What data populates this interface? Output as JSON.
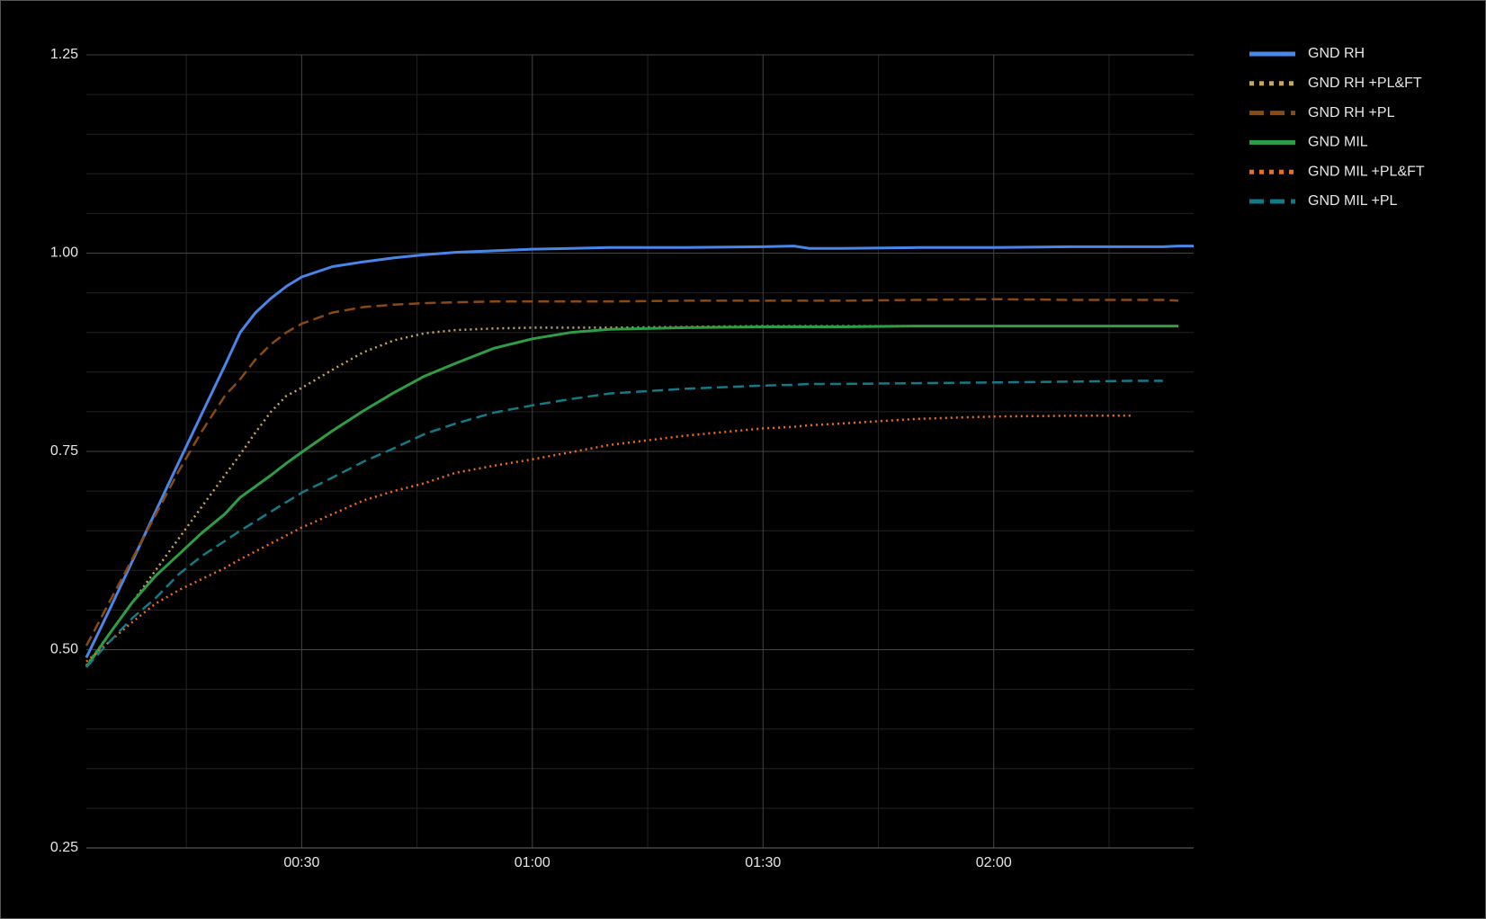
{
  "chart_data": {
    "type": "line",
    "x": [
      2,
      5,
      8,
      11,
      14,
      17,
      20,
      22,
      24,
      26,
      28,
      30,
      34,
      38,
      42,
      46,
      50,
      55,
      60,
      65,
      70,
      80,
      90,
      94,
      96,
      100,
      110,
      120,
      130,
      138,
      142,
      144,
      146
    ],
    "xlim": [
      2,
      146
    ],
    "xticks": [
      {
        "value": 30,
        "label": "00:30"
      },
      {
        "value": 60,
        "label": "01:00"
      },
      {
        "value": 90,
        "label": "01:30"
      },
      {
        "value": 120,
        "label": "02:00"
      }
    ],
    "xminor": [
      15,
      45,
      75,
      105,
      135
    ],
    "ylim": [
      0.25,
      1.25
    ],
    "yticks": [
      {
        "value": 0.25,
        "label": "0.25"
      },
      {
        "value": 0.5,
        "label": "0.50"
      },
      {
        "value": 0.75,
        "label": "0.75"
      },
      {
        "value": 1,
        "label": "1.00"
      },
      {
        "value": 1.25,
        "label": "1.25"
      }
    ],
    "yminor": [
      0.3,
      0.35,
      0.4,
      0.45,
      0.55,
      0.6,
      0.65,
      0.7,
      0.8,
      0.85,
      0.9,
      0.95,
      1.05,
      1.1,
      1.15,
      1.2
    ],
    "grid": true,
    "legend": "right",
    "series": [
      {
        "name": "GND RH",
        "color": "#4a86e8",
        "dash": "solid",
        "values": [
          0.49,
          0.55,
          0.612,
          0.674,
          0.736,
          0.797,
          0.858,
          0.9,
          0.925,
          0.943,
          0.958,
          0.97,
          0.983,
          0.989,
          0.994,
          0.998,
          1.001,
          1.003,
          1.005,
          1.006,
          1.007,
          1.007,
          1.008,
          1.009,
          1.006,
          1.006,
          1.007,
          1.007,
          1.008,
          1.008,
          1.008,
          1.009,
          1.009
        ]
      },
      {
        "name": "GND RH +PL&FT",
        "color": "#c9a65a",
        "dash": "dotted",
        "values": [
          0.48,
          0.52,
          0.56,
          0.6,
          0.64,
          0.68,
          0.72,
          0.746,
          0.774,
          0.8,
          0.82,
          0.83,
          0.853,
          0.875,
          0.89,
          0.899,
          0.903,
          0.905,
          0.906,
          0.906,
          0.906,
          0.907,
          0.908,
          0.908,
          0.908,
          0.908,
          0.908,
          0.908,
          0.908,
          0.908,
          0.908,
          0.908,
          null
        ]
      },
      {
        "name": "GND RH +PL",
        "color": "#8a4a12",
        "dash": "dashed",
        "values": [
          0.505,
          0.56,
          0.615,
          0.67,
          0.725,
          0.775,
          0.82,
          0.841,
          0.866,
          0.885,
          0.9,
          0.911,
          0.925,
          0.932,
          0.935,
          0.937,
          0.938,
          0.939,
          0.939,
          0.939,
          0.939,
          0.94,
          0.94,
          0.94,
          0.94,
          0.94,
          0.941,
          0.942,
          0.941,
          0.941,
          0.941,
          0.94,
          null
        ]
      },
      {
        "name": "GND MIL",
        "color": "#2e9e44",
        "dash": "solid",
        "values": [
          0.478,
          0.52,
          0.56,
          0.593,
          0.62,
          0.647,
          0.671,
          0.692,
          0.706,
          0.72,
          0.735,
          0.749,
          0.776,
          0.801,
          0.824,
          0.845,
          0.861,
          0.88,
          0.892,
          0.9,
          0.904,
          0.906,
          0.907,
          0.907,
          0.907,
          0.907,
          0.908,
          0.908,
          0.908,
          0.908,
          0.908,
          0.908,
          null
        ]
      },
      {
        "name": "GND MIL +PL&FT",
        "color": "#f26a1b",
        "dash": "dotted",
        "values": [
          0.485,
          0.51,
          0.535,
          0.558,
          0.575,
          0.589,
          0.603,
          0.614,
          0.624,
          0.634,
          0.644,
          0.654,
          0.671,
          0.688,
          0.7,
          0.71,
          0.723,
          0.732,
          0.74,
          0.749,
          0.758,
          0.77,
          0.779,
          0.781,
          0.783,
          0.785,
          0.791,
          0.794,
          0.795,
          0.795,
          null,
          null,
          null
        ]
      },
      {
        "name": "GND MIL +PL",
        "color": "#127a88",
        "dash": "dashed",
        "values": [
          0.478,
          0.51,
          0.54,
          0.565,
          0.595,
          0.618,
          0.637,
          0.65,
          0.662,
          0.674,
          0.686,
          0.698,
          0.717,
          0.737,
          0.754,
          0.772,
          0.785,
          0.799,
          0.808,
          0.816,
          0.823,
          0.829,
          0.833,
          0.834,
          0.835,
          0.835,
          0.836,
          0.837,
          0.838,
          0.839,
          0.839,
          null,
          null
        ]
      }
    ]
  }
}
